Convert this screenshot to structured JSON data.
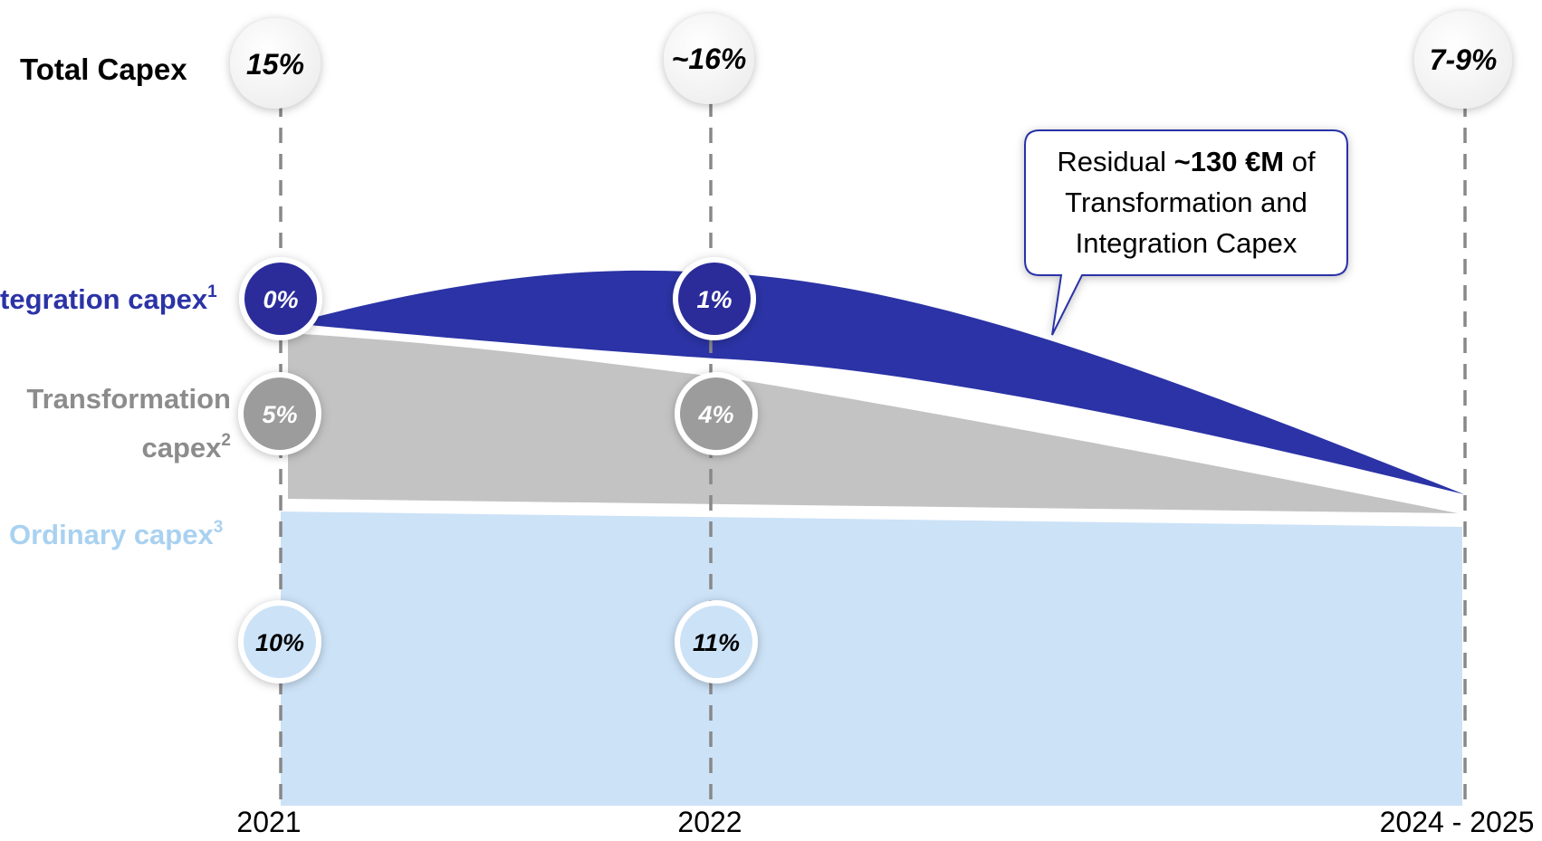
{
  "row_labels": {
    "total": "Total Capex",
    "integration": "tegration capex",
    "integration_sup": "1",
    "transformation_line1": "Transformation",
    "transformation_line2": "capex",
    "transformation_sup": "2",
    "ordinary": "Ordinary capex",
    "ordinary_sup": "3"
  },
  "callout": {
    "prefix": "Residual ",
    "highlight": "~130 €M",
    "suffix": " of Transformation and Integration Capex"
  },
  "colors": {
    "integration": "#2b33a6",
    "transformation": "#c3c3c3",
    "ordinary": "#cce2f7",
    "label_transformation": "#8c8c8c",
    "label_ordinary": "#a9d1f0"
  },
  "chart_data": {
    "type": "area",
    "categories": [
      "2021",
      "2022",
      "2024 - 2025"
    ],
    "total": [
      "15%",
      "~16%",
      "7-9%"
    ],
    "series": [
      {
        "name": "Integration capex",
        "values": [
          "0%",
          "1%",
          null
        ]
      },
      {
        "name": "Transformation capex",
        "values": [
          "5%",
          "4%",
          null
        ]
      },
      {
        "name": "Ordinary capex",
        "values": [
          "10%",
          "11%",
          null
        ]
      }
    ],
    "annotation": "Residual ~130 €M of Transformation and Integration Capex"
  }
}
